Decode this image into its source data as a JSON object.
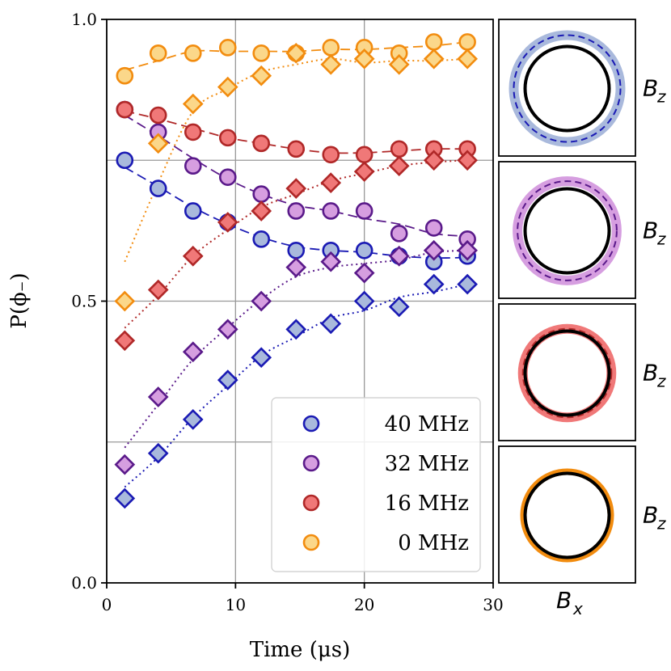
{
  "chart_data": {
    "type": "scatter",
    "xlabel": "Time (μs)",
    "ylabel": "P(ϕ₋)",
    "xlim": [
      0,
      30
    ],
    "ylim": [
      0,
      1
    ],
    "xticks": [
      0,
      10,
      20,
      30
    ],
    "xtick_labels": [
      "0",
      "10",
      "20",
      "30"
    ],
    "yticks": [
      0.0,
      0.5,
      1.0
    ],
    "ytick_labels": [
      "0.0",
      "0.5",
      "1.0"
    ],
    "grid_x": [
      10,
      20
    ],
    "grid_y": [
      0.25,
      0.5,
      0.75
    ],
    "legend_position": "lower-right",
    "legend": [
      {
        "label": "40 MHz"
      },
      {
        "label": "32 MHz"
      },
      {
        "label": "16 MHz"
      },
      {
        "label": "0 MHz"
      }
    ],
    "series": [
      {
        "name": "40 MHz",
        "edge": "#1a1ab4",
        "face": "#a9b9dc",
        "circles": {
          "x": [
            1.4,
            4.0,
            6.7,
            9.4,
            12.0,
            14.7,
            17.4,
            20.0,
            22.7,
            25.4,
            28.0
          ],
          "y": [
            0.75,
            0.7,
            0.66,
            0.64,
            0.61,
            0.59,
            0.59,
            0.59,
            0.58,
            0.57,
            0.58
          ]
        },
        "diamonds": {
          "x": [
            1.4,
            4.0,
            6.7,
            9.4,
            12.0,
            14.7,
            17.4,
            20.0,
            22.7,
            25.4,
            28.0
          ],
          "y": [
            0.15,
            0.23,
            0.29,
            0.36,
            0.4,
            0.45,
            0.46,
            0.5,
            0.49,
            0.53,
            0.53
          ]
        }
      },
      {
        "name": "32 MHz",
        "edge": "#5a1a8a",
        "face": "#d69ee0",
        "circles": {
          "x": [
            1.4,
            4.0,
            6.7,
            9.4,
            12.0,
            14.7,
            17.4,
            20.0,
            22.7,
            25.4,
            28.0
          ],
          "y": [
            0.84,
            0.8,
            0.74,
            0.72,
            0.69,
            0.66,
            0.66,
            0.66,
            0.62,
            0.63,
            0.61
          ]
        },
        "diamonds": {
          "x": [
            1.4,
            4.0,
            6.7,
            9.4,
            12.0,
            14.7,
            17.4,
            20.0,
            22.7,
            25.4,
            28.0
          ],
          "y": [
            0.21,
            0.33,
            0.41,
            0.45,
            0.5,
            0.56,
            0.57,
            0.55,
            0.58,
            0.59,
            0.59
          ]
        }
      },
      {
        "name": "16 MHz",
        "edge": "#b02828",
        "face": "#f07878",
        "circles": {
          "x": [
            1.4,
            4.0,
            6.7,
            9.4,
            12.0,
            14.7,
            17.4,
            20.0,
            22.7,
            25.4,
            28.0
          ],
          "y": [
            0.84,
            0.83,
            0.8,
            0.79,
            0.78,
            0.77,
            0.76,
            0.76,
            0.77,
            0.77,
            0.77
          ]
        },
        "diamonds": {
          "x": [
            1.4,
            4.0,
            6.7,
            9.4,
            12.0,
            14.7,
            17.4,
            20.0,
            22.7,
            25.4,
            28.0
          ],
          "y": [
            0.43,
            0.52,
            0.58,
            0.64,
            0.66,
            0.7,
            0.71,
            0.73,
            0.74,
            0.75,
            0.75
          ]
        }
      },
      {
        "name": "0 MHz",
        "edge": "#f28c0f",
        "face": "#fbd78a",
        "circles": {
          "x": [
            1.4,
            4.0,
            6.7,
            9.4,
            12.0,
            14.7,
            17.4,
            20.0,
            22.7,
            25.4,
            28.0
          ],
          "y": [
            0.9,
            0.94,
            0.94,
            0.95,
            0.94,
            0.94,
            0.95,
            0.95,
            0.94,
            0.96,
            0.96
          ]
        },
        "diamonds": {
          "x": [
            1.4,
            4.0,
            6.7,
            9.4,
            12.0,
            14.7,
            17.4,
            20.0,
            22.7,
            25.4,
            28.0
          ],
          "y": [
            0.5,
            0.78,
            0.85,
            0.88,
            0.9,
            0.94,
            0.92,
            0.93,
            0.92,
            0.93,
            0.93
          ]
        }
      }
    ]
  },
  "panels": {
    "ylabel": "B",
    "ylabel_sub": "z",
    "xlabel": "B",
    "xlabel_sub": "x",
    "items": [
      {
        "name": "40 MHz",
        "band": "#a9b9dc",
        "dash": "#1a1ab4",
        "band_scale": 1.0
      },
      {
        "name": "32 MHz",
        "band": "#d69ee0",
        "dash": "#5a1a8a",
        "band_scale": 0.93
      },
      {
        "name": "16 MHz",
        "band": "#f07878",
        "dash": "#b02828",
        "band_scale": 0.83
      },
      {
        "name": "0 MHz",
        "band": "#f28c0f",
        "dash": "",
        "band_scale": 0.73
      }
    ]
  }
}
